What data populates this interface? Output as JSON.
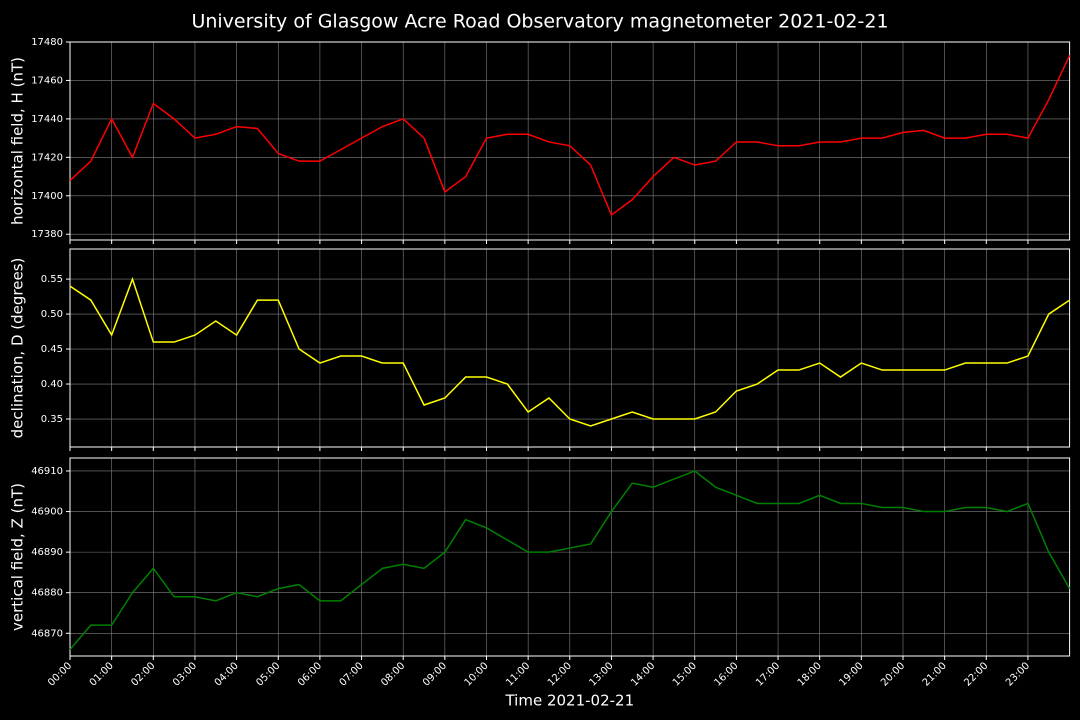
{
  "title": "University of Glasgow Acre Road Observatory magnetometer 2021-02-21",
  "chart_data": [
    {
      "type": "line",
      "ylabel": "horizontal field, H (nT)",
      "color": "#ff0000",
      "grid": true,
      "x": [
        0,
        0.5,
        1,
        1.5,
        2,
        2.5,
        3,
        3.5,
        4,
        4.5,
        5,
        5.5,
        6,
        6.5,
        7,
        7.5,
        8,
        8.5,
        9,
        9.5,
        10,
        10.5,
        11,
        11.5,
        12,
        12.5,
        13,
        13.5,
        14,
        14.5,
        15,
        15.5,
        16,
        16.5,
        17,
        17.5,
        18,
        18.5,
        19,
        19.5,
        20,
        20.5,
        21,
        21.5,
        22,
        22.5,
        23,
        23.5,
        24
      ],
      "values": [
        17408,
        17418,
        17440,
        17420,
        17448,
        17440,
        17430,
        17432,
        17436,
        17435,
        17422,
        17418,
        17418,
        17424,
        17430,
        17436,
        17440,
        17430,
        17402,
        17410,
        17430,
        17432,
        17432,
        17428,
        17426,
        17416,
        17390,
        17398,
        17410,
        17420,
        17416,
        17418,
        17428,
        17428,
        17426,
        17426,
        17428,
        17428,
        17430,
        17430,
        17433,
        17434,
        17430,
        17430,
        17432,
        17432,
        17430,
        17450,
        17473
      ],
      "xlim": [
        0,
        24
      ],
      "xticks": [
        0,
        1,
        2,
        3,
        4,
        5,
        6,
        7,
        8,
        9,
        10,
        11,
        12,
        13,
        14,
        15,
        16,
        17,
        18,
        19,
        20,
        21,
        22,
        23
      ],
      "ylim": [
        17377,
        17480
      ],
      "yticks": [
        17380,
        17400,
        17420,
        17440,
        17460,
        17480
      ]
    },
    {
      "type": "line",
      "ylabel": "declination, D (degrees)",
      "color": "#ffff00",
      "grid": true,
      "x": [
        0,
        0.5,
        1,
        1.5,
        2,
        2.5,
        3,
        3.5,
        4,
        4.5,
        5,
        5.5,
        6,
        6.5,
        7,
        7.5,
        8,
        8.5,
        9,
        9.5,
        10,
        10.5,
        11,
        11.5,
        12,
        12.5,
        13,
        13.5,
        14,
        14.5,
        15,
        15.5,
        16,
        16.5,
        17,
        17.5,
        18,
        18.5,
        19,
        19.5,
        20,
        20.5,
        21,
        21.5,
        22,
        22.5,
        23,
        23.5,
        24
      ],
      "values": [
        0.54,
        0.52,
        0.47,
        0.55,
        0.46,
        0.46,
        0.47,
        0.49,
        0.47,
        0.52,
        0.52,
        0.45,
        0.43,
        0.44,
        0.44,
        0.43,
        0.43,
        0.37,
        0.38,
        0.41,
        0.41,
        0.4,
        0.36,
        0.38,
        0.35,
        0.34,
        0.35,
        0.36,
        0.35,
        0.35,
        0.35,
        0.36,
        0.39,
        0.4,
        0.42,
        0.42,
        0.43,
        0.41,
        0.43,
        0.42,
        0.42,
        0.42,
        0.42,
        0.43,
        0.43,
        0.43,
        0.44,
        0.5,
        0.52
      ],
      "xlim": [
        0,
        24
      ],
      "xticks": [
        0,
        1,
        2,
        3,
        4,
        5,
        6,
        7,
        8,
        9,
        10,
        11,
        12,
        13,
        14,
        15,
        16,
        17,
        18,
        19,
        20,
        21,
        22,
        23
      ],
      "ylim": [
        0.31,
        0.593
      ],
      "yticks": [
        0.35,
        {
          "value": 0.4,
          "label": "0.40"
        },
        0.45,
        {
          "value": 0.5,
          "label": "0.50"
        },
        0.55
      ]
    },
    {
      "type": "line",
      "ylabel": "vertical field, Z (nT)",
      "xlabel": "Time 2021-02-21",
      "color": "#008000",
      "grid": true,
      "x": [
        0,
        0.5,
        1,
        1.5,
        2,
        2.5,
        3,
        3.5,
        4,
        4.5,
        5,
        5.5,
        6,
        6.5,
        7,
        7.5,
        8,
        8.5,
        9,
        9.5,
        10,
        10.5,
        11,
        11.5,
        12,
        12.5,
        13,
        13.5,
        14,
        14.5,
        15,
        15.5,
        16,
        16.5,
        17,
        17.5,
        18,
        18.5,
        19,
        19.5,
        20,
        20.5,
        21,
        21.5,
        22,
        22.5,
        23,
        23.5,
        24
      ],
      "values": [
        46866,
        46872,
        46872,
        46880,
        46886,
        46879,
        46879,
        46878,
        46880,
        46879,
        46881,
        46882,
        46878,
        46878,
        46882,
        46886,
        46887,
        46886,
        46890,
        46898,
        46896,
        46893,
        46890,
        46890,
        46891,
        46892,
        46900,
        46907,
        46906,
        46908,
        46910,
        46906,
        46904,
        46902,
        46902,
        46902,
        46904,
        46902,
        46902,
        46901,
        46901,
        46900,
        46900,
        46901,
        46901,
        46900,
        46902,
        46890,
        46881
      ],
      "xlim": [
        0,
        24
      ],
      "xticks": [
        {
          "value": 0,
          "label": "00:00"
        },
        {
          "value": 1,
          "label": "01:00"
        },
        {
          "value": 2,
          "label": "02:00"
        },
        {
          "value": 3,
          "label": "03:00"
        },
        {
          "value": 4,
          "label": "04:00"
        },
        {
          "value": 5,
          "label": "05:00"
        },
        {
          "value": 6,
          "label": "06:00"
        },
        {
          "value": 7,
          "label": "07:00"
        },
        {
          "value": 8,
          "label": "08:00"
        },
        {
          "value": 9,
          "label": "09:00"
        },
        {
          "value": 10,
          "label": "10:00"
        },
        {
          "value": 11,
          "label": "11:00"
        },
        {
          "value": 12,
          "label": "12:00"
        },
        {
          "value": 13,
          "label": "13:00"
        },
        {
          "value": 14,
          "label": "14:00"
        },
        {
          "value": 15,
          "label": "15:00"
        },
        {
          "value": 16,
          "label": "16:00"
        },
        {
          "value": 17,
          "label": "17:00"
        },
        {
          "value": 18,
          "label": "18:00"
        },
        {
          "value": 19,
          "label": "19:00"
        },
        {
          "value": 20,
          "label": "20:00"
        },
        {
          "value": 21,
          "label": "21:00"
        },
        {
          "value": 22,
          "label": "22:00"
        },
        {
          "value": 23,
          "label": "23:00"
        }
      ],
      "ylim": [
        46864.4,
        46913.2
      ],
      "yticks": [
        46870,
        46880,
        46890,
        46900,
        46910
      ]
    }
  ]
}
